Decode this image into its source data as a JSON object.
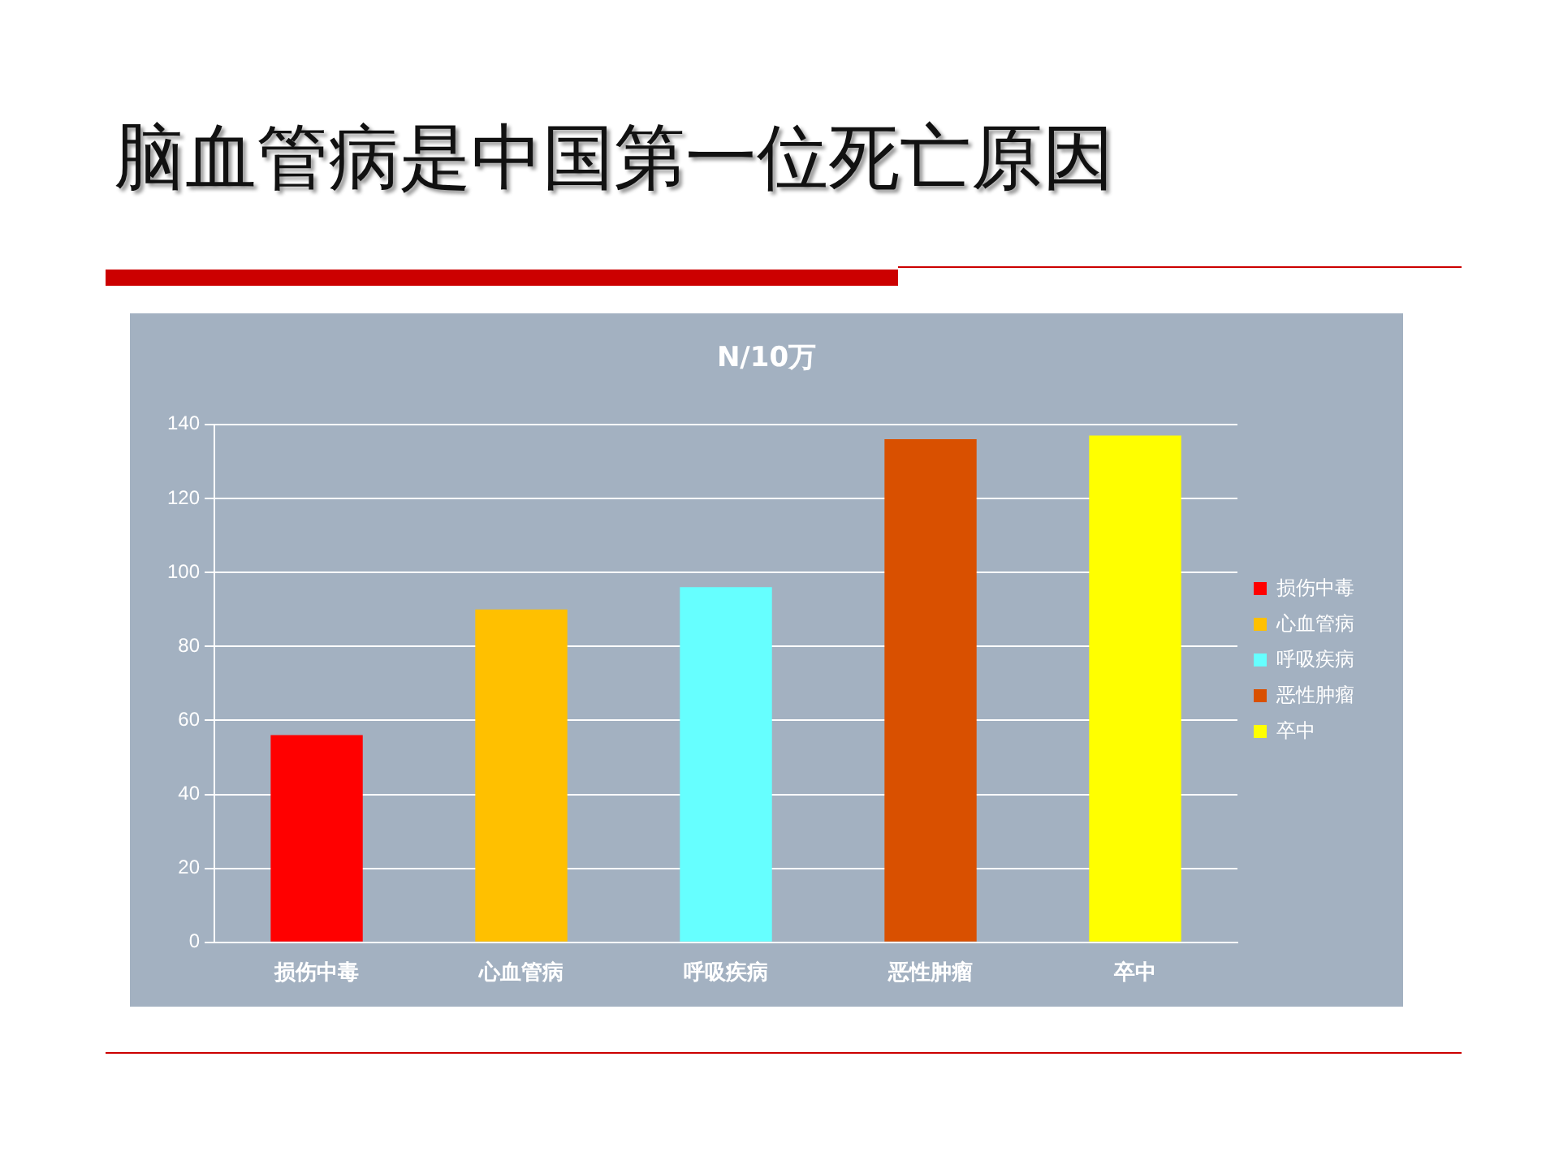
{
  "chart_data": {
    "type": "bar",
    "title": "脑血管病是中国第一位死亡原因",
    "subtitle": "N/10万",
    "categories": [
      "损伤中毒",
      "心血管病",
      "呼吸疾病",
      "恶性肿瘤",
      "卒中"
    ],
    "series": [
      {
        "name": "损伤中毒",
        "color": "#ff0000",
        "values": [
          56,
          null,
          null,
          null,
          null
        ]
      },
      {
        "name": "心血管病",
        "color": "#ffc000",
        "values": [
          null,
          90,
          null,
          null,
          null
        ]
      },
      {
        "name": "呼吸疾病",
        "color": "#66ffff",
        "values": [
          null,
          null,
          96,
          null,
          null
        ]
      },
      {
        "name": "恶性肿瘤",
        "color": "#d95000",
        "values": [
          null,
          null,
          null,
          136,
          null
        ]
      },
      {
        "name": "卒中",
        "color": "#ffff00",
        "values": [
          null,
          null,
          null,
          null,
          137
        ]
      }
    ],
    "ylim": [
      0,
      140
    ],
    "yticks": [
      0,
      20,
      40,
      60,
      80,
      100,
      120,
      140
    ],
    "grid": "y",
    "legend": "right"
  }
}
